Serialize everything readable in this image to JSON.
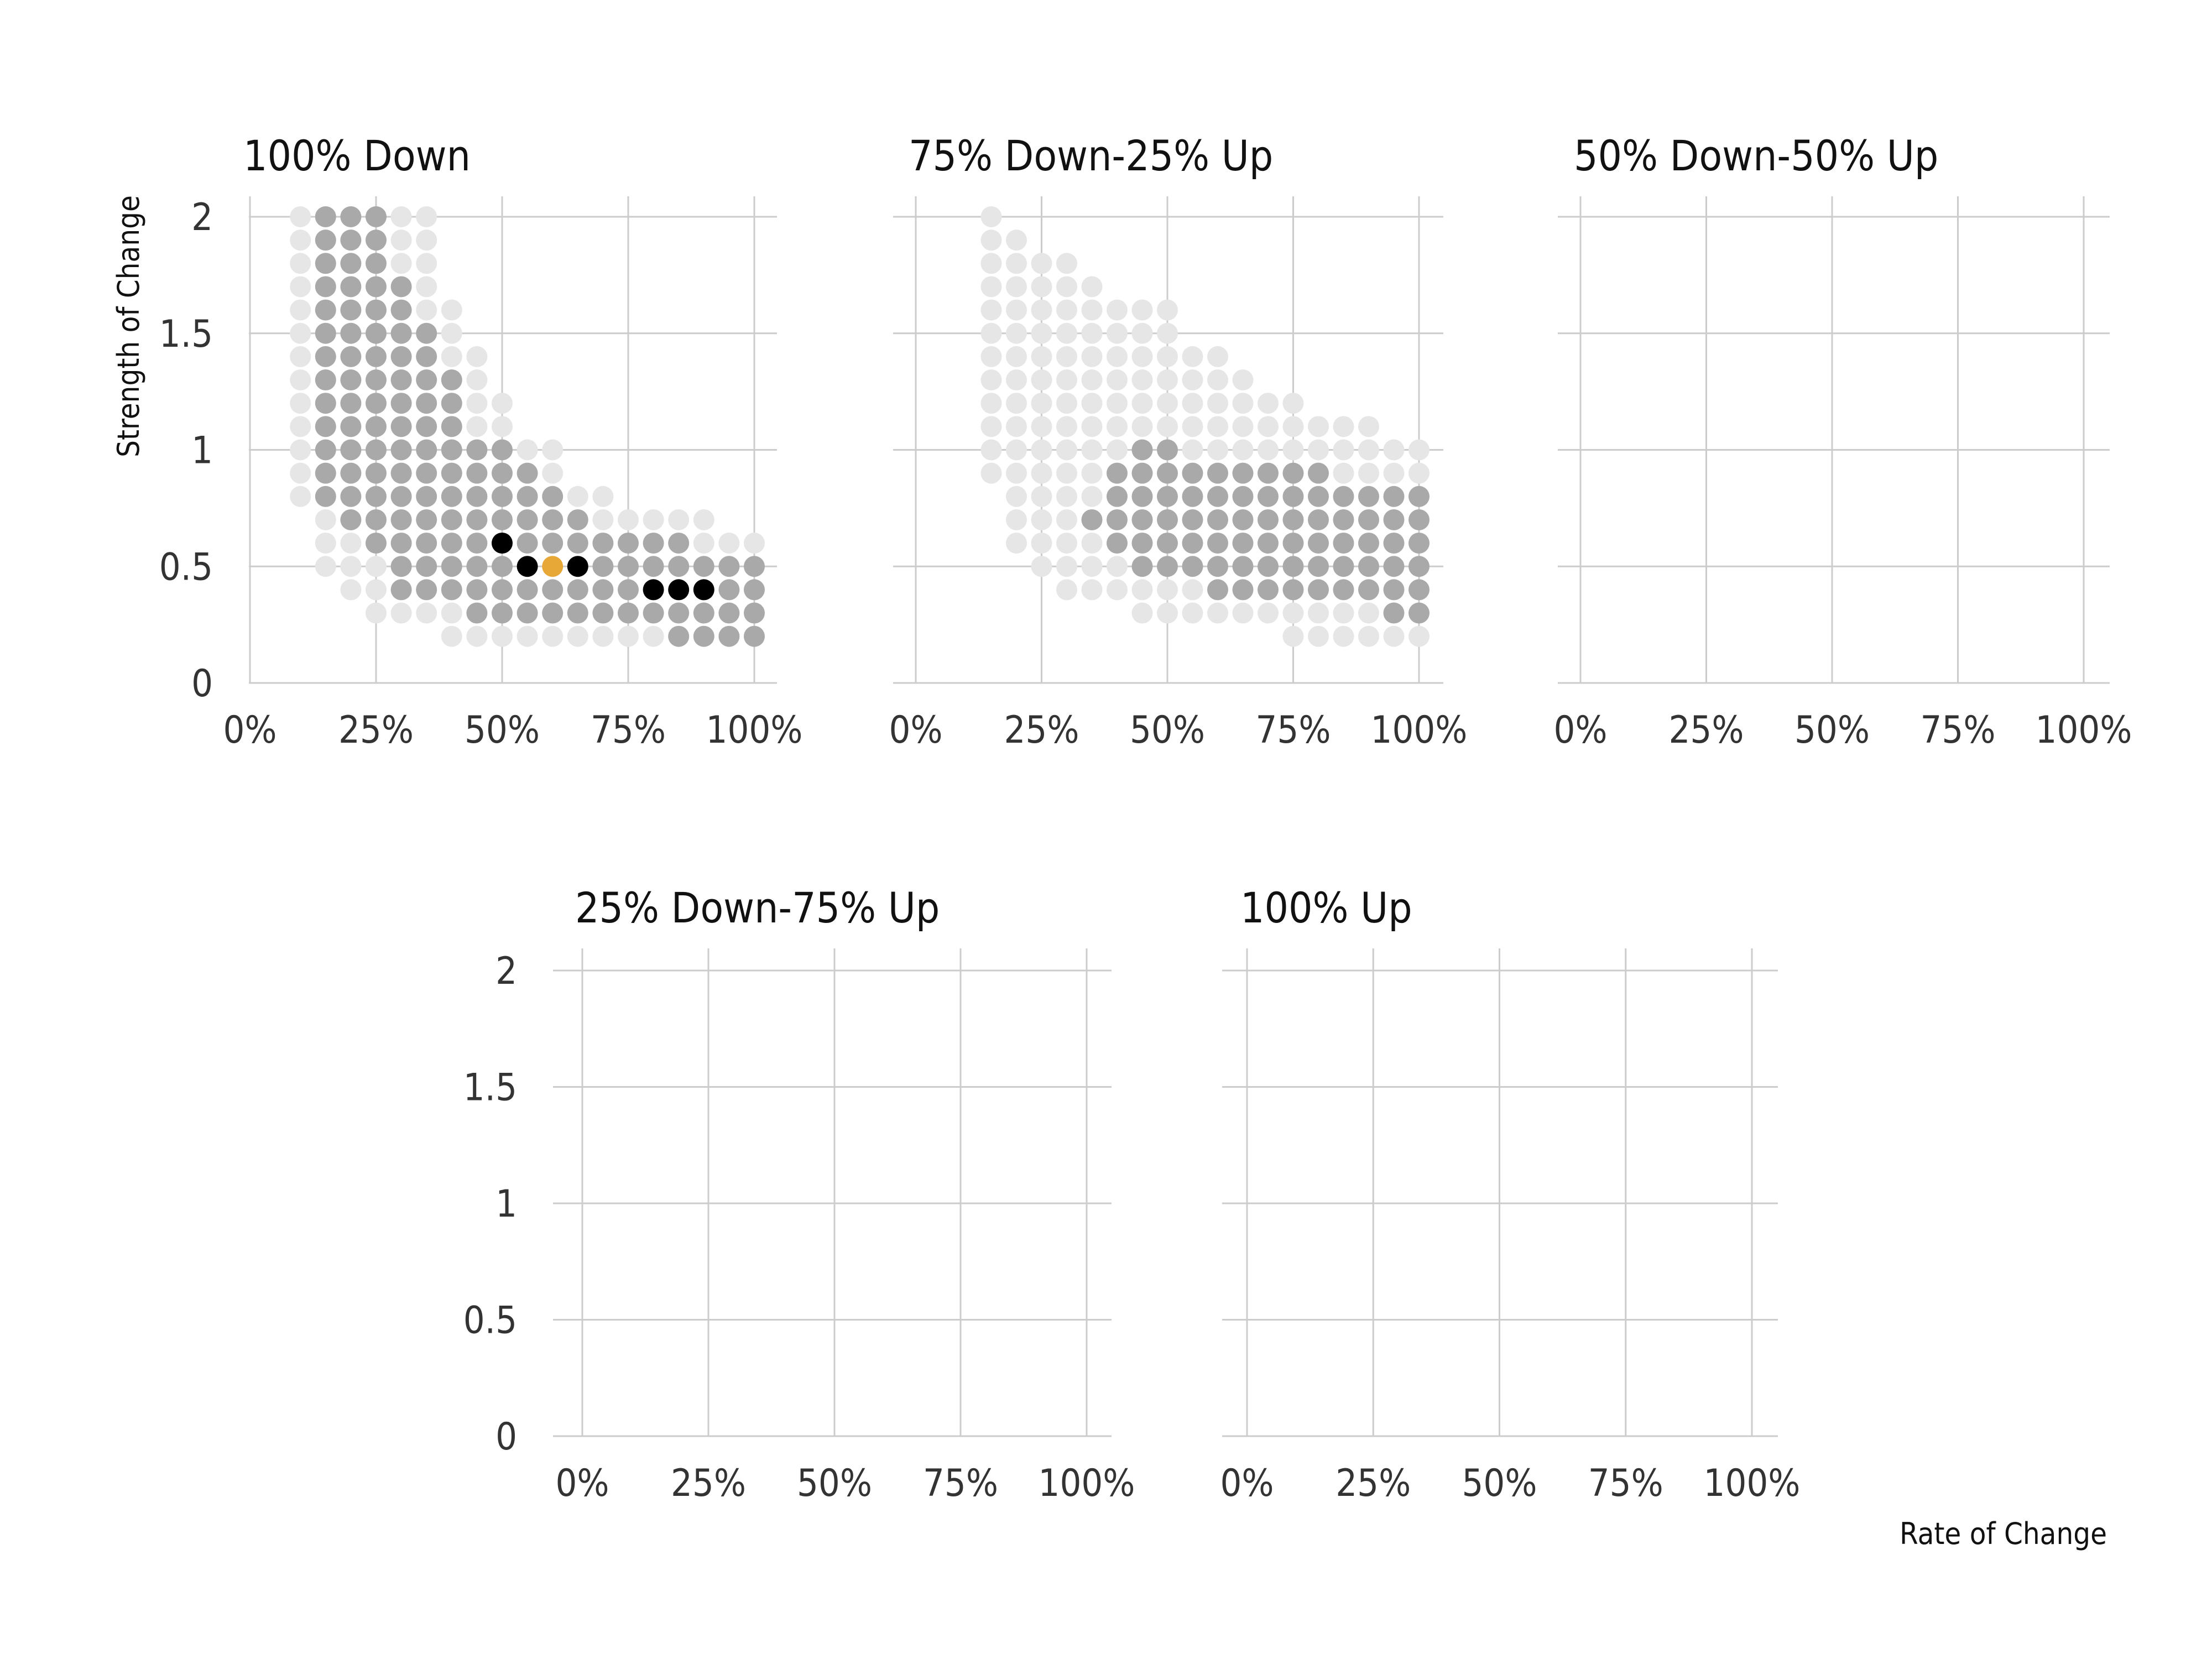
{
  "chart_data": {
    "type": "scatter",
    "layout": "faceted dot grid",
    "x_axis": {
      "label": "Rate of Change",
      "range": [
        0,
        1
      ],
      "ticks": [
        0,
        0.25,
        0.5,
        0.75,
        1
      ],
      "tick_labels": [
        "0%",
        "25%",
        "50%",
        "75%",
        "100%"
      ]
    },
    "y_axis": {
      "label": "Strength of Change",
      "range": [
        0,
        2
      ],
      "ticks": [
        0,
        0.5,
        1,
        1.5,
        2
      ],
      "tick_labels": [
        "0",
        "0.5",
        "1",
        "1.5",
        "2"
      ]
    },
    "grid": true,
    "legend": "none",
    "colors": {
      "light": "#e6e6e6",
      "mid": "#a9a9a9",
      "black": "#000000",
      "highlight": "#e8a838",
      "grid": "#cccccc"
    },
    "panels": [
      {
        "title": "100% Down",
        "columns": [
          {
            "x": 0.1,
            "light": [
              [
                0.8,
                2.0
              ]
            ]
          },
          {
            "x": 0.15,
            "light": [
              [
                0.5,
                0.7
              ],
              [
                2.0,
                2.0
              ]
            ],
            "mid": [
              [
                0.8,
                2.0
              ]
            ]
          },
          {
            "x": 0.2,
            "light": [
              [
                0.4,
                0.6
              ]
            ],
            "mid": [
              [
                0.7,
                2.0
              ]
            ]
          },
          {
            "x": 0.25,
            "light": [
              [
                0.3,
                0.5
              ]
            ],
            "mid": [
              [
                0.6,
                2.0
              ]
            ]
          },
          {
            "x": 0.3,
            "light": [
              [
                0.3,
                0.3
              ],
              [
                1.8,
                2.0
              ]
            ],
            "mid": [
              [
                0.4,
                1.7
              ]
            ]
          },
          {
            "x": 0.35,
            "light": [
              [
                0.3,
                0.3
              ],
              [
                1.6,
                2.0
              ]
            ],
            "mid": [
              [
                0.4,
                1.5
              ]
            ]
          },
          {
            "x": 0.4,
            "light": [
              [
                0.2,
                0.3
              ],
              [
                1.4,
                1.6
              ]
            ],
            "mid": [
              [
                0.4,
                1.3
              ]
            ]
          },
          {
            "x": 0.45,
            "light": [
              [
                0.2,
                0.2
              ],
              [
                1.1,
                1.4
              ]
            ],
            "mid": [
              [
                0.3,
                1.0
              ]
            ]
          },
          {
            "x": 0.5,
            "light": [
              [
                0.2,
                0.2
              ],
              [
                1.1,
                1.2
              ]
            ],
            "mid": [
              [
                0.3,
                0.5
              ],
              [
                0.7,
                1.0
              ]
            ],
            "black": [
              0.6
            ]
          },
          {
            "x": 0.55,
            "light": [
              [
                0.2,
                0.2
              ],
              [
                1.0,
                1.0
              ]
            ],
            "mid": [
              [
                0.3,
                0.4
              ],
              [
                0.6,
                0.9
              ]
            ],
            "black": [
              0.5
            ]
          },
          {
            "x": 0.6,
            "light": [
              [
                0.2,
                0.2
              ],
              [
                0.9,
                1.0
              ]
            ],
            "mid": [
              [
                0.3,
                0.4
              ],
              [
                0.6,
                0.8
              ]
            ],
            "highlight": [
              0.5
            ]
          },
          {
            "x": 0.65,
            "light": [
              [
                0.2,
                0.2
              ],
              [
                0.8,
                0.8
              ]
            ],
            "mid": [
              [
                0.3,
                0.4
              ],
              [
                0.6,
                0.7
              ]
            ],
            "black": [
              0.5
            ]
          },
          {
            "x": 0.7,
            "light": [
              [
                0.2,
                0.2
              ],
              [
                0.7,
                0.8
              ]
            ],
            "mid": [
              [
                0.3,
                0.6
              ]
            ]
          },
          {
            "x": 0.75,
            "light": [
              [
                0.2,
                0.2
              ],
              [
                0.7,
                0.7
              ]
            ],
            "mid": [
              [
                0.3,
                0.6
              ]
            ]
          },
          {
            "x": 0.8,
            "light": [
              [
                0.2,
                0.2
              ],
              [
                0.7,
                0.7
              ]
            ],
            "mid": [
              [
                0.3,
                0.3
              ],
              [
                0.5,
                0.6
              ]
            ],
            "black": [
              0.4
            ]
          },
          {
            "x": 0.85,
            "light": [
              [
                0.7,
                0.7
              ]
            ],
            "mid": [
              [
                0.2,
                0.3
              ],
              [
                0.5,
                0.6
              ]
            ],
            "black": [
              0.4
            ]
          },
          {
            "x": 0.9,
            "light": [
              [
                0.6,
                0.7
              ]
            ],
            "mid": [
              [
                0.2,
                0.3
              ],
              [
                0.5,
                0.5
              ]
            ],
            "black": [
              0.4
            ]
          },
          {
            "x": 0.95,
            "light": [
              [
                0.6,
                0.6
              ]
            ],
            "mid": [
              [
                0.2,
                0.5
              ]
            ]
          },
          {
            "x": 1.0,
            "light": [
              [
                0.6,
                0.6
              ]
            ],
            "mid": [
              [
                0.2,
                0.5
              ]
            ]
          }
        ]
      },
      {
        "title": "75% Down-25% Up",
        "columns": [
          {
            "x": 0.15,
            "light": [
              [
                0.9,
                2.0
              ]
            ]
          },
          {
            "x": 0.2,
            "light": [
              [
                0.6,
                1.9
              ]
            ]
          },
          {
            "x": 0.25,
            "light": [
              [
                0.5,
                1.8
              ]
            ]
          },
          {
            "x": 0.3,
            "light": [
              [
                0.4,
                1.8
              ]
            ]
          },
          {
            "x": 0.35,
            "light": [
              [
                0.4,
                0.6
              ],
              [
                0.8,
                1.7
              ]
            ],
            "mid": [
              [
                0.7,
                0.7
              ]
            ]
          },
          {
            "x": 0.4,
            "light": [
              [
                0.4,
                0.5
              ],
              [
                1.0,
                1.6
              ]
            ],
            "mid": [
              [
                0.6,
                0.9
              ]
            ]
          },
          {
            "x": 0.45,
            "light": [
              [
                0.3,
                0.4
              ],
              [
                1.1,
                1.6
              ]
            ],
            "mid": [
              [
                0.5,
                1.0
              ]
            ]
          },
          {
            "x": 0.5,
            "light": [
              [
                0.3,
                0.4
              ],
              [
                1.1,
                1.6
              ]
            ],
            "mid": [
              [
                0.5,
                1.0
              ]
            ]
          },
          {
            "x": 0.55,
            "light": [
              [
                0.3,
                0.4
              ],
              [
                1.0,
                1.4
              ]
            ],
            "mid": [
              [
                0.5,
                0.9
              ]
            ]
          },
          {
            "x": 0.6,
            "light": [
              [
                0.3,
                0.3
              ],
              [
                1.0,
                1.4
              ]
            ],
            "mid": [
              [
                0.4,
                0.9
              ]
            ]
          },
          {
            "x": 0.65,
            "light": [
              [
                0.3,
                0.3
              ],
              [
                1.0,
                1.3
              ]
            ],
            "mid": [
              [
                0.4,
                0.9
              ]
            ]
          },
          {
            "x": 0.7,
            "light": [
              [
                0.3,
                0.3
              ],
              [
                1.0,
                1.2
              ]
            ],
            "mid": [
              [
                0.4,
                0.9
              ]
            ]
          },
          {
            "x": 0.75,
            "light": [
              [
                0.2,
                0.3
              ],
              [
                1.0,
                1.2
              ]
            ],
            "mid": [
              [
                0.4,
                0.9
              ]
            ]
          },
          {
            "x": 0.8,
            "light": [
              [
                0.2,
                0.3
              ],
              [
                1.0,
                1.1
              ]
            ],
            "mid": [
              [
                0.4,
                0.9
              ]
            ]
          },
          {
            "x": 0.85,
            "light": [
              [
                0.2,
                0.3
              ],
              [
                0.9,
                1.1
              ]
            ],
            "mid": [
              [
                0.4,
                0.8
              ]
            ]
          },
          {
            "x": 0.9,
            "light": [
              [
                0.2,
                0.3
              ],
              [
                0.9,
                1.1
              ]
            ],
            "mid": [
              [
                0.4,
                0.8
              ]
            ]
          },
          {
            "x": 0.95,
            "light": [
              [
                0.2,
                0.2
              ],
              [
                0.9,
                1.0
              ]
            ],
            "mid": [
              [
                0.3,
                0.8
              ]
            ]
          },
          {
            "x": 1.0,
            "light": [
              [
                0.2,
                0.2
              ],
              [
                0.9,
                1.0
              ]
            ],
            "mid": [
              [
                0.3,
                0.8
              ]
            ]
          }
        ]
      },
      {
        "title": "50% Down-50% Up",
        "columns": []
      },
      {
        "title": "25% Down-75% Up",
        "columns": []
      },
      {
        "title": "100% Up",
        "columns": []
      }
    ]
  }
}
